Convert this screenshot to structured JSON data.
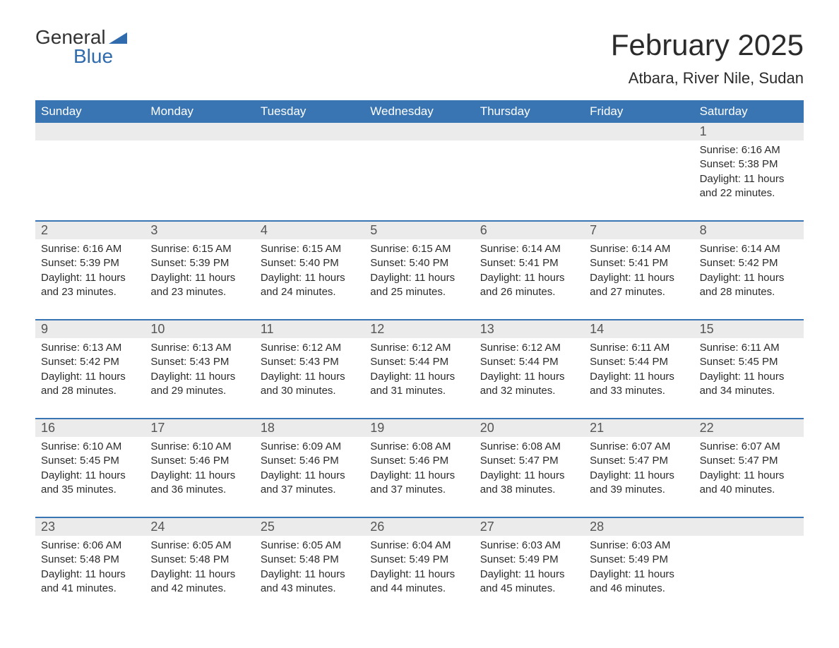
{
  "logo": {
    "top": "General",
    "bottom": "Blue"
  },
  "title": "February 2025",
  "subtitle": "Atbara, River Nile, Sudan",
  "colors": {
    "header_bg": "#3875b2",
    "header_text": "#ffffff",
    "row_divider": "#3875b2",
    "daynum_bg": "#ebebeb",
    "daynum_text": "#555555",
    "body_text": "#2b2b2b",
    "logo_blue": "#2f6bad",
    "page_bg": "#ffffff"
  },
  "weekdays": [
    "Sunday",
    "Monday",
    "Tuesday",
    "Wednesday",
    "Thursday",
    "Friday",
    "Saturday"
  ],
  "weeks": [
    [
      null,
      null,
      null,
      null,
      null,
      null,
      {
        "n": "1",
        "sunrise": "6:16 AM",
        "sunset": "5:38 PM",
        "daylight": "11 hours and 22 minutes."
      }
    ],
    [
      {
        "n": "2",
        "sunrise": "6:16 AM",
        "sunset": "5:39 PM",
        "daylight": "11 hours and 23 minutes."
      },
      {
        "n": "3",
        "sunrise": "6:15 AM",
        "sunset": "5:39 PM",
        "daylight": "11 hours and 23 minutes."
      },
      {
        "n": "4",
        "sunrise": "6:15 AM",
        "sunset": "5:40 PM",
        "daylight": "11 hours and 24 minutes."
      },
      {
        "n": "5",
        "sunrise": "6:15 AM",
        "sunset": "5:40 PM",
        "daylight": "11 hours and 25 minutes."
      },
      {
        "n": "6",
        "sunrise": "6:14 AM",
        "sunset": "5:41 PM",
        "daylight": "11 hours and 26 minutes."
      },
      {
        "n": "7",
        "sunrise": "6:14 AM",
        "sunset": "5:41 PM",
        "daylight": "11 hours and 27 minutes."
      },
      {
        "n": "8",
        "sunrise": "6:14 AM",
        "sunset": "5:42 PM",
        "daylight": "11 hours and 28 minutes."
      }
    ],
    [
      {
        "n": "9",
        "sunrise": "6:13 AM",
        "sunset": "5:42 PM",
        "daylight": "11 hours and 28 minutes."
      },
      {
        "n": "10",
        "sunrise": "6:13 AM",
        "sunset": "5:43 PM",
        "daylight": "11 hours and 29 minutes."
      },
      {
        "n": "11",
        "sunrise": "6:12 AM",
        "sunset": "5:43 PM",
        "daylight": "11 hours and 30 minutes."
      },
      {
        "n": "12",
        "sunrise": "6:12 AM",
        "sunset": "5:44 PM",
        "daylight": "11 hours and 31 minutes."
      },
      {
        "n": "13",
        "sunrise": "6:12 AM",
        "sunset": "5:44 PM",
        "daylight": "11 hours and 32 minutes."
      },
      {
        "n": "14",
        "sunrise": "6:11 AM",
        "sunset": "5:44 PM",
        "daylight": "11 hours and 33 minutes."
      },
      {
        "n": "15",
        "sunrise": "6:11 AM",
        "sunset": "5:45 PM",
        "daylight": "11 hours and 34 minutes."
      }
    ],
    [
      {
        "n": "16",
        "sunrise": "6:10 AM",
        "sunset": "5:45 PM",
        "daylight": "11 hours and 35 minutes."
      },
      {
        "n": "17",
        "sunrise": "6:10 AM",
        "sunset": "5:46 PM",
        "daylight": "11 hours and 36 minutes."
      },
      {
        "n": "18",
        "sunrise": "6:09 AM",
        "sunset": "5:46 PM",
        "daylight": "11 hours and 37 minutes."
      },
      {
        "n": "19",
        "sunrise": "6:08 AM",
        "sunset": "5:46 PM",
        "daylight": "11 hours and 37 minutes."
      },
      {
        "n": "20",
        "sunrise": "6:08 AM",
        "sunset": "5:47 PM",
        "daylight": "11 hours and 38 minutes."
      },
      {
        "n": "21",
        "sunrise": "6:07 AM",
        "sunset": "5:47 PM",
        "daylight": "11 hours and 39 minutes."
      },
      {
        "n": "22",
        "sunrise": "6:07 AM",
        "sunset": "5:47 PM",
        "daylight": "11 hours and 40 minutes."
      }
    ],
    [
      {
        "n": "23",
        "sunrise": "6:06 AM",
        "sunset": "5:48 PM",
        "daylight": "11 hours and 41 minutes."
      },
      {
        "n": "24",
        "sunrise": "6:05 AM",
        "sunset": "5:48 PM",
        "daylight": "11 hours and 42 minutes."
      },
      {
        "n": "25",
        "sunrise": "6:05 AM",
        "sunset": "5:48 PM",
        "daylight": "11 hours and 43 minutes."
      },
      {
        "n": "26",
        "sunrise": "6:04 AM",
        "sunset": "5:49 PM",
        "daylight": "11 hours and 44 minutes."
      },
      {
        "n": "27",
        "sunrise": "6:03 AM",
        "sunset": "5:49 PM",
        "daylight": "11 hours and 45 minutes."
      },
      {
        "n": "28",
        "sunrise": "6:03 AM",
        "sunset": "5:49 PM",
        "daylight": "11 hours and 46 minutes."
      },
      null
    ]
  ],
  "labels": {
    "sunrise": "Sunrise: ",
    "sunset": "Sunset: ",
    "daylight": "Daylight: "
  }
}
